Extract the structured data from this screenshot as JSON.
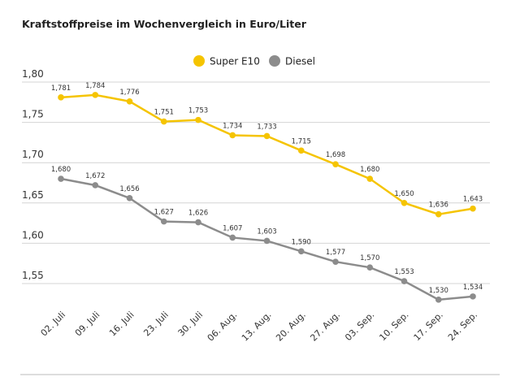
{
  "chart_data": {
    "type": "line",
    "title": "Kraftstoffpreise im Wochenvergleich in Euro/Liter",
    "categories": [
      "02. Juli",
      "09. Juli",
      "16. Juli",
      "23. Juli",
      "30. Juli",
      "06. Aug.",
      "13. Aug.",
      "20. Aug.",
      "27. Aug.",
      "03. Sep.",
      "10. Sep.",
      "17. Sep.",
      "24. Sep."
    ],
    "series": [
      {
        "name": "Super E10",
        "color": "#f5c400",
        "values": [
          1.781,
          1.784,
          1.776,
          1.751,
          1.753,
          1.734,
          1.733,
          1.715,
          1.698,
          1.68,
          1.65,
          1.636,
          1.643
        ],
        "value_labels": [
          "1,781",
          "1,784",
          "1,776",
          "1,751",
          "1,753",
          "1,734",
          "1,733",
          "1,715",
          "1,698",
          "1,680",
          "1,650",
          "1,636",
          "1,643"
        ]
      },
      {
        "name": "Diesel",
        "color": "#8c8c8c",
        "values": [
          1.68,
          1.672,
          1.656,
          1.627,
          1.626,
          1.607,
          1.603,
          1.59,
          1.577,
          1.57,
          1.553,
          1.53,
          1.534
        ],
        "value_labels": [
          "1,680",
          "1,672",
          "1,656",
          "1,627",
          "1,626",
          "1,607",
          "1,603",
          "1,590",
          "1,577",
          "1,570",
          "1,553",
          "1,530",
          "1,534"
        ]
      }
    ],
    "ylim": [
      1.52,
      1.8
    ],
    "yticks": [
      {
        "value": 1.8,
        "label": "1,80"
      },
      {
        "value": 1.75,
        "label": "1,75"
      },
      {
        "value": 1.7,
        "label": "1,70"
      },
      {
        "value": 1.65,
        "label": "1,65"
      },
      {
        "value": 1.6,
        "label": "1,60"
      },
      {
        "value": 1.55,
        "label": "1,55"
      }
    ],
    "grid": true,
    "legend": "top"
  }
}
